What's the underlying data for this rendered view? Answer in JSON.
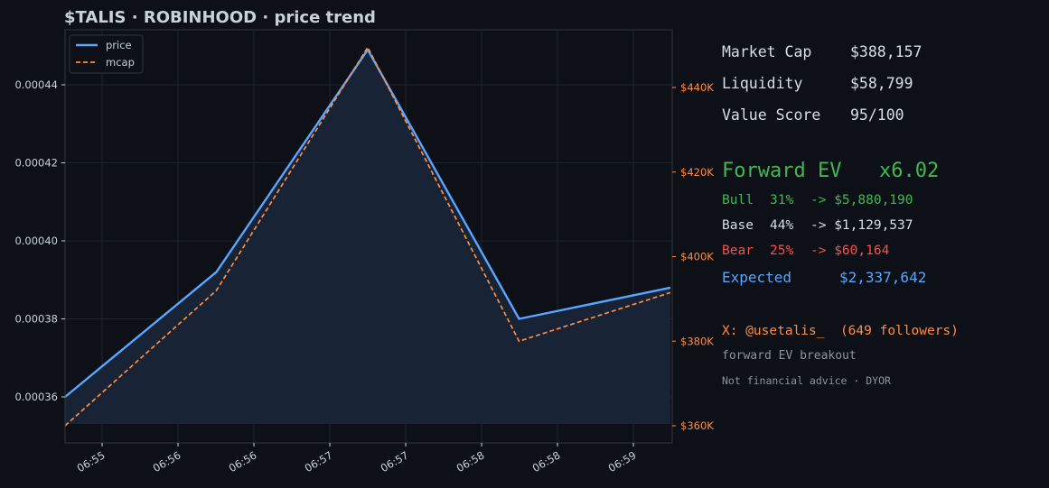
{
  "chart_data": {
    "type": "line",
    "title": "$TALIS · ROBINHOOD  ·  price trend",
    "x": [
      "06:55",
      "06:56",
      "06:57",
      "06:58",
      "06:59"
    ],
    "x_tick_labels": [
      "06:55",
      "06:56",
      "06:56",
      "06:57",
      "06:57",
      "06:58",
      "06:58",
      "06:59"
    ],
    "series": [
      {
        "name": "price",
        "axis": "left",
        "color": "#58a6ff",
        "style": "solid",
        "fill": true,
        "values": [
          0.00036,
          0.000392,
          0.000449,
          0.00038,
          0.000388
        ]
      },
      {
        "name": "mcap",
        "axis": "right",
        "color": "#ff8c42",
        "style": "dashed",
        "values": [
          360000,
          392000,
          449500,
          380000,
          391500
        ]
      }
    ],
    "y_left": {
      "ylim": [
        0.00035,
        0.000455
      ],
      "ticks": [
        0.00036,
        0.00038,
        0.0004,
        0.00042,
        0.00044
      ],
      "tick_labels": [
        "0.00036",
        "0.00038",
        "0.00040",
        "0.00042",
        "0.00044"
      ]
    },
    "y_right": {
      "ylim": [
        355000,
        450000
      ],
      "ticks": [
        360000,
        380000,
        400000,
        420000,
        440000
      ],
      "tick_labels": [
        "$360K",
        "$380K",
        "$400K",
        "$420K",
        "$440K"
      ],
      "color": "#ff8c42"
    },
    "grid": true,
    "legend": {
      "position": "top-left",
      "entries": [
        "price",
        "mcap"
      ]
    }
  },
  "panel": {
    "market_cap_label": "Market Cap",
    "market_cap_value": "$388,157",
    "liquidity_label": "Liquidity",
    "liquidity_value": "$58,799",
    "value_score_label": "Value Score",
    "value_score_value": "95/100",
    "forward_ev_label": "Forward EV",
    "forward_ev_value": "x6.02",
    "scenarios": [
      {
        "name": "Bull",
        "pct": "31%",
        "value": "-> $5,880,190",
        "color": "#3fb950"
      },
      {
        "name": "Base",
        "pct": "44%",
        "value": "-> $1,129,537",
        "color": "#d8dee6"
      },
      {
        "name": "Bear",
        "pct": "25%",
        "value": "-> $60,164",
        "color": "#f85149"
      }
    ],
    "expected_label": "Expected",
    "expected_value": "$2,337,642",
    "x_handle": "X: @usetalis_  (649 followers)",
    "subtitle": "forward EV breakout",
    "disclaimer": "Not financial advice · DYOR"
  },
  "colors": {
    "background": "#0d1017",
    "plot_background": "#0d1017",
    "price": "#58a6ff",
    "mcap": "#ff8c42",
    "fill": "#182435",
    "bull": "#3fb950",
    "bear": "#f85149",
    "expected": "#58a6ff"
  }
}
